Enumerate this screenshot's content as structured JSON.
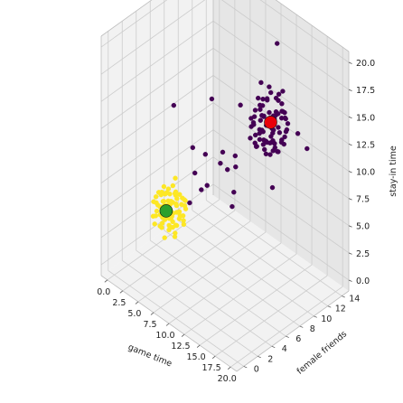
{
  "chart_data": {
    "type": "scatter",
    "projection": "3d",
    "title": "",
    "xlabel": "game time",
    "ylabel": "female friends",
    "zlabel": "stay-in time",
    "xlim": [
      -1,
      21
    ],
    "ylim": [
      -1,
      15
    ],
    "zlim": [
      -1,
      21
    ],
    "xticks": [
      "0.0",
      "2.5",
      "5.0",
      "7.5",
      "10.0",
      "12.5",
      "15.0",
      "17.5",
      "20.0"
    ],
    "yticks": [
      "0",
      "2",
      "4",
      "6",
      "8",
      "10",
      "12",
      "14"
    ],
    "zticks": [
      "0.0",
      "2.5",
      "5.0",
      "7.5",
      "10.0",
      "12.5",
      "15.0",
      "17.5",
      "20.0"
    ],
    "grid": true,
    "legend": false,
    "colors": {
      "cluster_a": "#fde725",
      "cluster_b": "#440154",
      "center_a": "#2ca02c",
      "center_b": "#e8000b",
      "pane_floor": "#f2f2f2",
      "pane_left": "#f2f2f2",
      "pane_right": "#e6e6e6",
      "grid": "#cccccc"
    },
    "series": [
      {
        "cluster": "a",
        "points": [
          [
            4.2,
            3.1,
            5.5
          ],
          [
            5.0,
            2.8,
            6.1
          ],
          [
            6.1,
            3.9,
            4.8
          ],
          [
            3.8,
            2.2,
            4.9
          ],
          [
            5.6,
            4.4,
            6.6
          ],
          [
            4.9,
            3.5,
            3.9
          ],
          [
            6.4,
            2.7,
            5.2
          ],
          [
            3.5,
            3.7,
            6.3
          ],
          [
            5.3,
            2.1,
            4.5
          ],
          [
            4.5,
            4.8,
            5.9
          ],
          [
            6.8,
            3.3,
            6.0
          ],
          [
            5.9,
            2.5,
            7.0
          ],
          [
            4.1,
            4.1,
            4.2
          ],
          [
            5.5,
            3.0,
            5.0
          ],
          [
            6.2,
            4.6,
            5.7
          ],
          [
            3.9,
            2.9,
            6.8
          ],
          [
            4.7,
            2.4,
            5.3
          ],
          [
            5.8,
            3.8,
            4.1
          ],
          [
            6.6,
            3.9,
            6.9
          ],
          [
            4.4,
            3.2,
            7.4
          ],
          [
            5.1,
            4.7,
            4.6
          ],
          [
            3.6,
            3.4,
            5.1
          ],
          [
            6.9,
            2.6,
            4.4
          ],
          [
            4.8,
            2.0,
            6.4
          ],
          [
            5.4,
            3.6,
            7.7
          ],
          [
            6.3,
            3.1,
            3.6
          ],
          [
            4.0,
            4.4,
            6.0
          ],
          [
            5.2,
            2.6,
            3.3
          ],
          [
            6.0,
            4.9,
            5.2
          ],
          [
            3.7,
            2.5,
            4.0
          ],
          [
            4.6,
            3.9,
            3.4
          ],
          [
            5.7,
            2.3,
            6.2
          ],
          [
            6.5,
            4.2,
            4.3
          ],
          [
            4.3,
            2.6,
            7.1
          ],
          [
            5.0,
            4.3,
            7.9
          ],
          [
            3.4,
            3.0,
            5.6
          ],
          [
            6.7,
            3.5,
            5.5
          ],
          [
            4.9,
            2.9,
            4.7
          ],
          [
            5.6,
            3.2,
            6.5
          ],
          [
            4.2,
            3.8,
            5.3
          ],
          [
            3.3,
            2.7,
            5.8
          ],
          [
            6.1,
            2.2,
            5.8
          ],
          [
            5.3,
            4.1,
            3.8
          ],
          [
            4.5,
            3.3,
            6.7
          ],
          [
            5.9,
            3.7,
            5.4
          ],
          [
            4.1,
            2.3,
            5.0
          ],
          [
            6.4,
            4.5,
            6.3
          ],
          [
            5.1,
            3.9,
            4.9
          ],
          [
            4.6,
            4.6,
            6.2
          ],
          [
            5.5,
            2.5,
            5.6
          ],
          [
            3.9,
            4.0,
            4.6
          ],
          [
            6.2,
            2.9,
            6.8
          ],
          [
            4.8,
            3.5,
            7.2
          ],
          [
            5.7,
            4.8,
            4.5
          ],
          [
            4.0,
            3.0,
            3.7
          ],
          [
            6.6,
            2.4,
            5.9
          ],
          [
            5.2,
            3.4,
            6.0
          ],
          [
            4.3,
            4.3,
            5.5
          ],
          [
            5.8,
            2.7,
            4.2
          ],
          [
            4.7,
            3.0,
            5.8
          ],
          [
            3.5,
            3.6,
            6.1
          ],
          [
            6.9,
            3.8,
            5.0
          ],
          [
            5.4,
            2.2,
            6.9
          ],
          [
            4.4,
            4.2,
            4.0
          ],
          [
            6.1,
            3.4,
            7.5
          ],
          [
            5.0,
            3.7,
            5.1
          ],
          [
            3.8,
            2.6,
            6.5
          ],
          [
            5.6,
            4.0,
            6.4
          ],
          [
            6.3,
            2.8,
            4.6
          ],
          [
            4.9,
            4.5,
            5.4
          ],
          [
            5.2,
            2.9,
            7.3
          ],
          [
            4.2,
            3.6,
            4.4
          ],
          [
            6.0,
            3.6,
            6.1
          ],
          [
            4.6,
            2.8,
            4.3
          ],
          [
            5.9,
            4.4,
            5.8
          ],
          [
            3.6,
            3.9,
            5.4
          ],
          [
            5.3,
            3.3,
            4.0
          ],
          [
            4.5,
            2.1,
            5.7
          ],
          [
            6.7,
            4.1,
            6.7
          ],
          [
            5.1,
            2.4,
            5.2
          ]
        ]
      },
      {
        "cluster": "b",
        "points": [
          [
            13.1,
            9.2,
            13.0
          ],
          [
            14.0,
            10.1,
            12.1
          ],
          [
            12.2,
            8.8,
            14.2
          ],
          [
            14.9,
            9.5,
            13.6
          ],
          [
            13.5,
            11.0,
            11.4
          ],
          [
            12.8,
            9.9,
            15.1
          ],
          [
            15.3,
            10.4,
            12.5
          ],
          [
            13.8,
            8.6,
            13.9
          ],
          [
            14.5,
            11.3,
            14.6
          ],
          [
            12.5,
            10.7,
            12.8
          ],
          [
            13.2,
            9.6,
            16.0
          ],
          [
            15.6,
            9.0,
            14.4
          ],
          [
            14.2,
            10.9,
            13.2
          ],
          [
            12.0,
            9.3,
            13.5
          ],
          [
            13.6,
            8.3,
            12.4
          ],
          [
            14.8,
            11.6,
            12.9
          ],
          [
            15.1,
            9.8,
            15.5
          ],
          [
            12.9,
            10.3,
            11.7
          ],
          [
            13.9,
            9.1,
            14.9
          ],
          [
            14.4,
            10.6,
            11.2
          ],
          [
            12.4,
            8.5,
            12.6
          ],
          [
            13.3,
            11.4,
            15.3
          ],
          [
            15.8,
            10.0,
            13.1
          ],
          [
            14.1,
            9.4,
            16.5
          ],
          [
            12.7,
            9.7,
            13.8
          ],
          [
            13.7,
            10.8,
            14.1
          ],
          [
            15.4,
            8.7,
            12.2
          ],
          [
            14.6,
            10.2,
            14.8
          ],
          [
            12.3,
            10.0,
            14.5
          ],
          [
            13.0,
            8.9,
            11.9
          ],
          [
            14.3,
            11.8,
            13.7
          ],
          [
            15.9,
            9.6,
            14.0
          ],
          [
            12.6,
            11.2,
            13.3
          ],
          [
            13.4,
            9.0,
            15.8
          ],
          [
            14.7,
            8.4,
            13.4
          ],
          [
            15.2,
            11.1,
            14.3
          ],
          [
            13.8,
            10.5,
            12.0
          ],
          [
            12.1,
            9.5,
            12.3
          ],
          [
            14.0,
            9.8,
            15.0
          ],
          [
            13.5,
            11.5,
            13.9
          ],
          [
            15.0,
            10.2,
            11.6
          ],
          [
            12.9,
            8.2,
            14.0
          ],
          [
            14.9,
            10.8,
            15.7
          ],
          [
            13.2,
            10.9,
            12.7
          ],
          [
            15.5,
            9.3,
            12.6
          ],
          [
            12.3,
            11.0,
            14.9
          ],
          [
            14.5,
            8.9,
            11.8
          ],
          [
            13.6,
            9.4,
            14.7
          ],
          [
            14.2,
            11.0,
            16.2
          ],
          [
            12.7,
            10.1,
            11.4
          ],
          [
            15.7,
            10.7,
            13.5
          ],
          [
            13.1,
            8.6,
            15.4
          ],
          [
            14.8,
            9.2,
            12.8
          ],
          [
            12.0,
            10.5,
            13.6
          ],
          [
            13.9,
            11.7,
            14.2
          ],
          [
            15.2,
            8.8,
            14.9
          ],
          [
            14.4,
            9.7,
            13.0
          ],
          [
            12.6,
            9.0,
            12.0
          ],
          [
            13.3,
            10.4,
            16.8
          ],
          [
            14.7,
            11.4,
            12.3
          ],
          [
            15.9,
            9.9,
            15.2
          ],
          [
            12.8,
            11.6,
            13.1
          ],
          [
            13.7,
            8.7,
            12.9
          ],
          [
            14.1,
            10.3,
            14.5
          ],
          [
            12.2,
            9.8,
            15.6
          ],
          [
            15.3,
            11.3,
            13.8
          ],
          [
            13.0,
            10.0,
            11.1
          ],
          [
            14.6,
            9.5,
            17.2
          ],
          [
            12.5,
            8.9,
            13.7
          ],
          [
            13.8,
            11.9,
            15.9
          ],
          [
            15.6,
            10.5,
            12.4
          ],
          [
            14.3,
            8.5,
            14.1
          ],
          [
            12.1,
            10.6,
            12.1
          ],
          [
            13.4,
            9.3,
            13.3
          ],
          [
            14.9,
            11.2,
            14.7
          ],
          [
            12.9,
            9.6,
            17.4
          ],
          [
            15.0,
            8.6,
            13.2
          ],
          [
            13.6,
            10.7,
            10.9
          ],
          [
            14.0,
            11.1,
            15.5
          ],
          [
            12.4,
            9.1,
            14.3
          ],
          [
            7.0,
            4.6,
            6.3
          ],
          [
            8.8,
            5.5,
            8.2
          ],
          [
            9.6,
            6.7,
            10.0
          ],
          [
            7.5,
            4.9,
            9.1
          ],
          [
            10.4,
            7.0,
            9.6
          ],
          [
            11.2,
            7.4,
            11.0
          ],
          [
            6.0,
            3.2,
            15.5
          ],
          [
            14.0,
            4.5,
            8.8
          ],
          [
            17.5,
            10.8,
            14.0
          ],
          [
            10.5,
            14.0,
            18.0
          ],
          [
            11.5,
            7.2,
            10.2
          ],
          [
            8.2,
            5.2,
            7.7
          ],
          [
            16.0,
            8.5,
            9.5
          ],
          [
            9.0,
            6.0,
            16.0
          ],
          [
            12.0,
            6.5,
            8.4
          ],
          [
            9.2,
            4.9,
            11.5
          ],
          [
            8.4,
            3.8,
            12.3
          ],
          [
            10.8,
            8.5,
            15.0
          ],
          [
            16.5,
            13.0,
            11.2
          ],
          [
            11.0,
            5.8,
            12.0
          ]
        ]
      }
    ],
    "centers": [
      {
        "cluster": "a",
        "point": [
          5.0,
          3.0,
          5.5
        ]
      },
      {
        "cluster": "b",
        "point": [
          14.0,
          10.0,
          14.0
        ]
      }
    ]
  }
}
